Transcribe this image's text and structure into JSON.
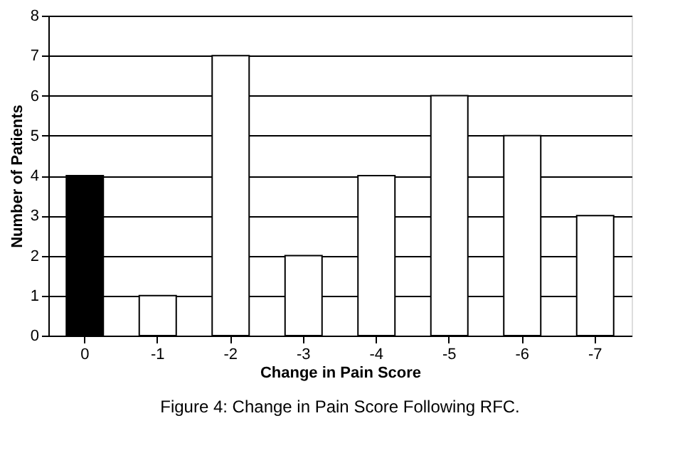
{
  "chart_data": {
    "type": "bar",
    "categories": [
      "0",
      "-1",
      "-2",
      "-3",
      "-4",
      "-5",
      "-6",
      "-7"
    ],
    "values": [
      4,
      1,
      7,
      2,
      4,
      6,
      5,
      3
    ],
    "colors": [
      "#000000",
      "#ffffff",
      "#ffffff",
      "#ffffff",
      "#ffffff",
      "#ffffff",
      "#ffffff",
      "#ffffff"
    ],
    "xlabel": "Change in Pain Score",
    "ylabel": "Number of Patients",
    "ylim": [
      0,
      8
    ],
    "yticks": [
      0,
      1,
      2,
      3,
      4,
      5,
      6,
      7,
      8
    ],
    "grid": "y",
    "legend": false,
    "annotations": [
      "Figure 4: Change in Pain Score Following RFC."
    ]
  }
}
